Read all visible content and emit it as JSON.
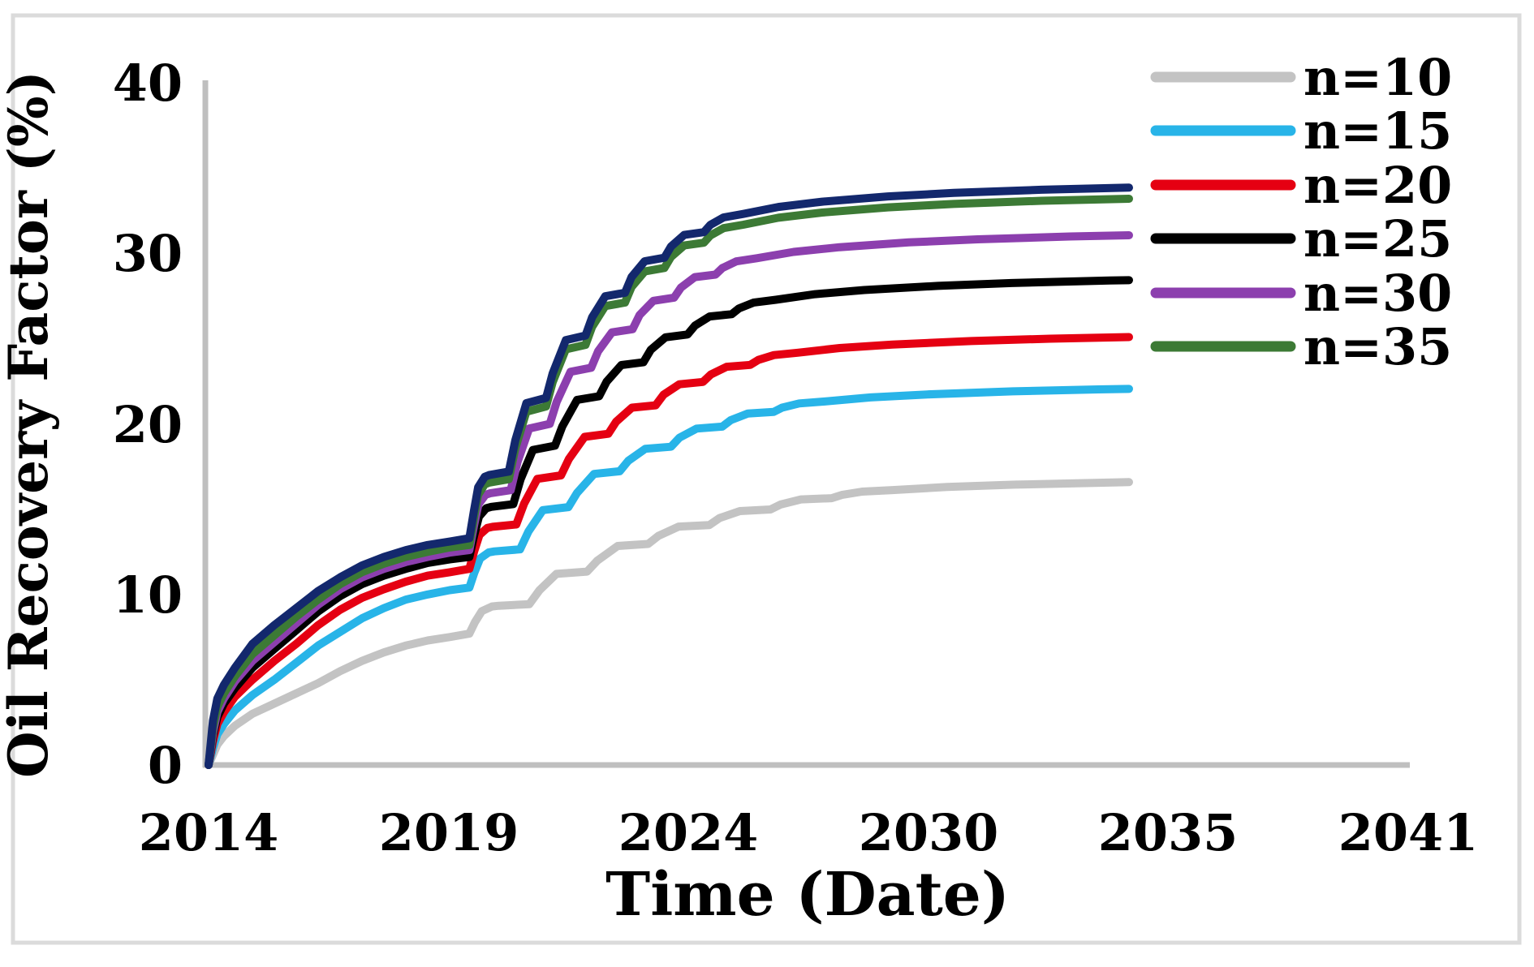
{
  "chart_data": {
    "type": "line",
    "title": "",
    "xlabel": "Time (Date)",
    "ylabel": "Oil Recovery Factor (%)",
    "x_tick_labels": [
      "2014",
      "2019",
      "2024",
      "2030",
      "2035",
      "2041"
    ],
    "y_tick_labels": [
      "0",
      "10",
      "20",
      "30",
      "40"
    ],
    "ylim": [
      0,
      40
    ],
    "xlim_years": [
      2014,
      2041.4
    ],
    "grid": false,
    "legend_position": "top-right",
    "axis_line_color": "#bfbfbf",
    "description": "Oil recovery factor vs time for different n values; curves rise steeply in 2014, plateau ~8-13% by 2019, jump in 2020, climb in annual scallop steps to 2025, then flatten toward 2035.",
    "pre_years": [
      2014,
      2014.1,
      2014.2,
      2014.35,
      2014.6,
      2015,
      2015.5,
      2016,
      2016.5,
      2017,
      2017.5,
      2018,
      2018.5,
      2019,
      2019.5,
      2019.95
    ],
    "post_template_t_g": [
      [
        0.05,
        0.075
      ],
      [
        0.15,
        0.145
      ],
      [
        0.3,
        0.175
      ],
      [
        0.4,
        0.18
      ],
      [
        0.85,
        0.19
      ],
      [
        1.0,
        0.28
      ],
      [
        1.25,
        0.385
      ],
      [
        1.7,
        0.4
      ],
      [
        1.85,
        0.47
      ],
      [
        2.15,
        0.565
      ],
      [
        2.6,
        0.578
      ],
      [
        2.75,
        0.63
      ],
      [
        3.05,
        0.69
      ],
      [
        3.5,
        0.7
      ],
      [
        3.65,
        0.745
      ],
      [
        3.95,
        0.79
      ],
      [
        4.4,
        0.8
      ],
      [
        4.55,
        0.832
      ],
      [
        4.85,
        0.865
      ],
      [
        5.3,
        0.873
      ],
      [
        5.45,
        0.894
      ],
      [
        5.75,
        0.915
      ],
      [
        6.2,
        0.925
      ],
      [
        7.0,
        0.945
      ],
      [
        8.0,
        0.96
      ],
      [
        9.5,
        0.975
      ],
      [
        11.0,
        0.985
      ],
      [
        13.0,
        0.994
      ],
      [
        15.0,
        1.0
      ]
    ],
    "end_year": 2035,
    "series": [
      {
        "label": "n=10",
        "color": "#c3c3c3",
        "pre_jump_value_2019": 7.7,
        "final_value_2035": 16.6,
        "asymptote": 16.8,
        "time_stretch": 1.55,
        "pre_values": [
          0,
          0.6,
          1.2,
          1.7,
          2.3,
          3.0,
          3.6,
          4.2,
          4.8,
          5.5,
          6.1,
          6.6,
          7.0,
          7.3,
          7.5,
          7.7
        ]
      },
      {
        "label": "n=15",
        "color": "#28b4e8",
        "pre_jump_value_2019": 10.4,
        "final_value_2035": 22.1,
        "asymptote": 22.2,
        "time_stretch": 1.3,
        "pre_values": [
          0,
          1.0,
          1.8,
          2.4,
          3.2,
          4.1,
          5.0,
          6.0,
          7.0,
          7.8,
          8.6,
          9.2,
          9.7,
          10.0,
          10.25,
          10.4
        ]
      },
      {
        "label": "n=20",
        "color": "#e50012",
        "pre_jump_value_2019": 11.5,
        "final_value_2035": 25.1,
        "asymptote": 25.2,
        "time_stretch": 1.2,
        "pre_values": [
          0,
          1.4,
          2.4,
          3.1,
          4.0,
          5.0,
          6.1,
          7.1,
          8.2,
          9.1,
          9.8,
          10.3,
          10.75,
          11.1,
          11.3,
          11.5
        ]
      },
      {
        "label": "n=25",
        "color": "#000000",
        "pre_jump_value_2019": 12.2,
        "final_value_2035": 28.4,
        "asymptote": 28.5,
        "time_stretch": 1.12,
        "pre_values": [
          0,
          1.7,
          2.8,
          3.6,
          4.5,
          5.7,
          6.8,
          7.9,
          9.0,
          9.9,
          10.6,
          11.1,
          11.5,
          11.85,
          12.05,
          12.2
        ]
      },
      {
        "label": "n=30",
        "color": "#8c3fae",
        "pre_jump_value_2019": 12.6,
        "final_value_2035": 31.0,
        "asymptote": 31.1,
        "time_stretch": 1.05,
        "pre_values": [
          0,
          1.9,
          3.1,
          3.9,
          4.9,
          6.1,
          7.2,
          8.3,
          9.4,
          10.3,
          11.0,
          11.5,
          11.9,
          12.2,
          12.45,
          12.6
        ]
      },
      {
        "label": "n=35",
        "color": "#3c7a35",
        "pre_jump_value_2019": 12.9,
        "final_value_2035": 33.2,
        "asymptote": 33.2,
        "time_stretch": 1.0,
        "pre_values": [
          0,
          2.2,
          3.4,
          4.2,
          5.2,
          6.5,
          7.6,
          8.7,
          9.7,
          10.6,
          11.3,
          11.8,
          12.2,
          12.5,
          12.75,
          12.9
        ]
      },
      {
        "label": "",
        "color": "#13286d",
        "pre_jump_value_2019": 13.3,
        "final_value_2035": 33.8,
        "asymptote": 33.85,
        "time_stretch": 1.0,
        "pre_values": [
          0,
          2.6,
          3.9,
          4.7,
          5.7,
          7.1,
          8.2,
          9.2,
          10.2,
          11.0,
          11.7,
          12.2,
          12.6,
          12.9,
          13.1,
          13.3
        ]
      }
    ]
  },
  "legend": [
    {
      "label": "n=10",
      "color": "#c3c3c3"
    },
    {
      "label": "n=15",
      "color": "#28b4e8"
    },
    {
      "label": "n=20",
      "color": "#e50012"
    },
    {
      "label": "n=25",
      "color": "#000000"
    },
    {
      "label": "n=30",
      "color": "#8c3fae"
    },
    {
      "label": "n=35",
      "color": "#3c7a35"
    }
  ]
}
